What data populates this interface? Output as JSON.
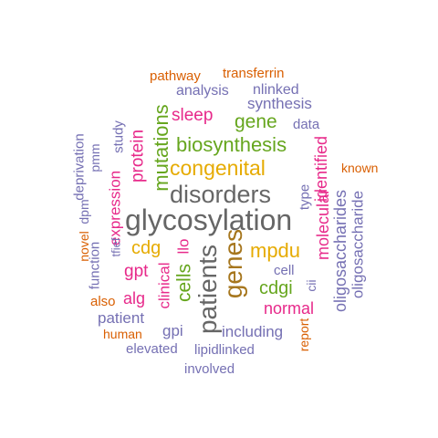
{
  "wordcloud": {
    "colors": {
      "orange": "#d95f02",
      "purple": "#7570b3",
      "pink": "#e7298a",
      "green": "#66a61e",
      "mustard": "#e6ab02",
      "brown": "#a6761d",
      "gray": "#666666"
    },
    "words": {
      "pathway": "pathway",
      "transferrin": "transferrin",
      "analysis": "analysis",
      "nlinked": "nlinked",
      "synthesis": "synthesis",
      "sleep": "sleep",
      "gene": "gene",
      "data": "data",
      "biosynthesis": "biosynthesis",
      "congenital": "congenital",
      "known": "known",
      "disorders": "disorders",
      "glycosylation": "glycosylation",
      "cdg": "cdg",
      "mpdu": "mpdu",
      "cell": "cell",
      "gpt": "gpt",
      "cdgi": "cdgi",
      "alg": "alg",
      "also": "also",
      "normal": "normal",
      "patient": "patient",
      "gpi": "gpi",
      "including": "including",
      "human": "human",
      "elevated": "elevated",
      "lipidlinked": "lipidlinked",
      "involved": "involved",
      "deprivation": "deprivation",
      "pmm": "pmm",
      "study": "study",
      "dpm": "dpm",
      "protein": "protein",
      "mutations": "mutations",
      "expression": "expression",
      "novel": "novel",
      "function": "function",
      "tfief": "tfief",
      "llo": "llo",
      "clinical": "clinical",
      "cells": "cells",
      "patients": "patients",
      "genes": "genes",
      "type": "type",
      "molecular": "molecular",
      "identified": "identified",
      "cii": "cii",
      "oligosaccharides": "oligosaccharides",
      "oligosaccharide": "oligosaccharide",
      "report": "report"
    }
  }
}
